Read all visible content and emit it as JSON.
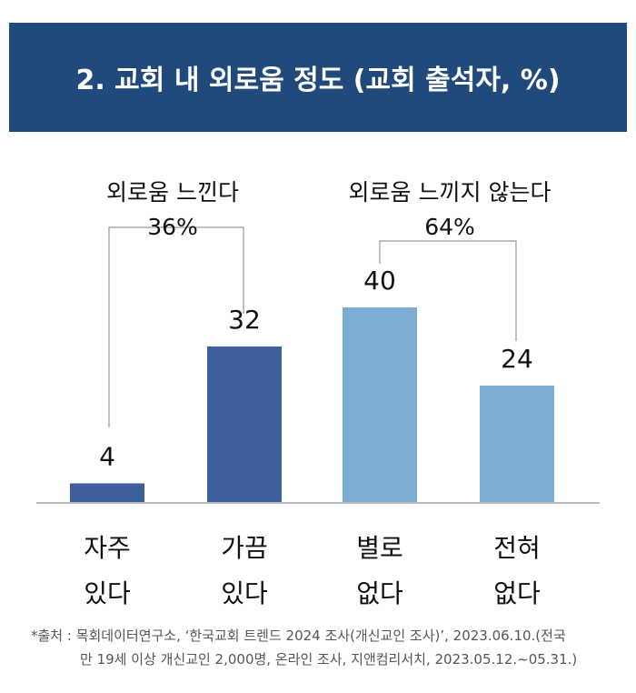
{
  "title": "2. 교회 내 외로움 정도 (교회 출석자, %)",
  "chart_data": {
    "type": "bar",
    "categories": [
      [
        "자주",
        "있다"
      ],
      [
        "가끔",
        "있다"
      ],
      [
        "별로",
        "없다"
      ],
      [
        "전혀",
        "없다"
      ]
    ],
    "values": [
      4,
      32,
      40,
      24
    ],
    "ylim": [
      0,
      40
    ],
    "grid": false,
    "colors": [
      "#3d5f9b",
      "#3d5f9b",
      "#7eadd4",
      "#7eadd4"
    ],
    "groups": [
      {
        "label": "외로움 느낀다",
        "value": "36%",
        "bars": [
          0,
          1
        ]
      },
      {
        "label": "외로움 느끼지 않는다",
        "value": "64%",
        "bars": [
          2,
          3
        ]
      }
    ]
  },
  "footnote": [
    "*출처 : 목회데이터연구소, ‘한국교회 트렌드 2024 조사(개신교인 조사)’, 2023.06.10.(전국",
    "만 19세 이상 개신교인 2,000명, 온라인 조사, 지앤컴리서치,  2023.05.12.~05.31.)"
  ]
}
